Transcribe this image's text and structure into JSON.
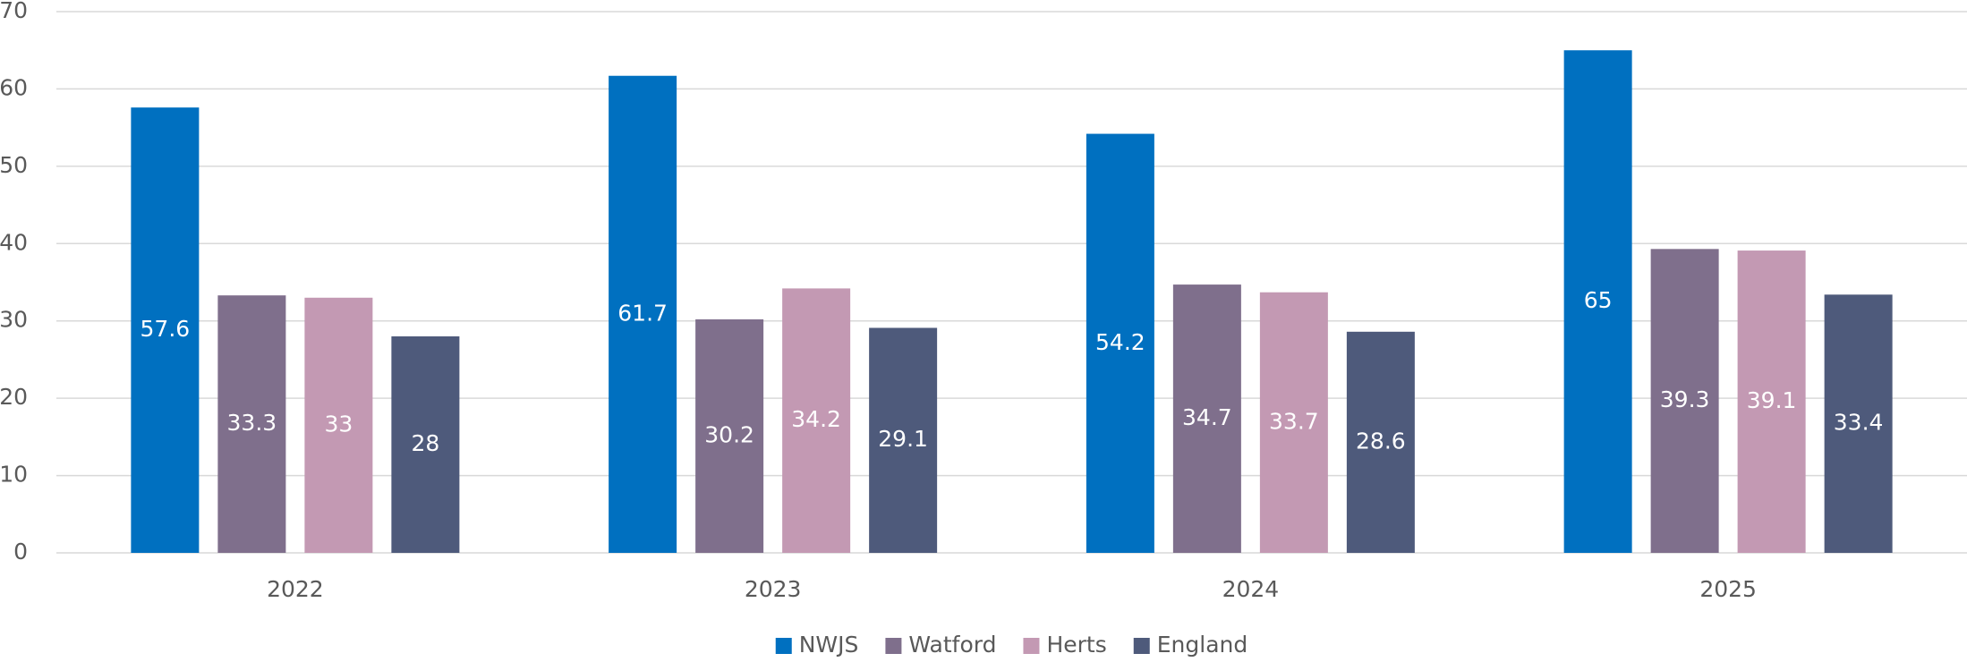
{
  "chart_data": {
    "type": "bar",
    "categories": [
      "2022",
      "2023",
      "2024",
      "2025"
    ],
    "series": [
      {
        "name": "NWJS",
        "color": "#0070c0",
        "values": [
          57.6,
          61.7,
          54.2,
          65
        ]
      },
      {
        "name": "Watford",
        "color": "#7f6f8c",
        "values": [
          33.3,
          30.2,
          34.7,
          39.3
        ]
      },
      {
        "name": "Herts",
        "color": "#c399b3",
        "values": [
          33,
          34.2,
          33.7,
          39.1
        ]
      },
      {
        "name": "England",
        "color": "#4e5a7b",
        "values": [
          28,
          29.1,
          28.6,
          33.4
        ]
      }
    ],
    "ylim": [
      0,
      70
    ],
    "yticks": [
      0,
      10,
      20,
      30,
      40,
      50,
      60,
      70
    ],
    "grid": true,
    "legend": "bottom"
  }
}
